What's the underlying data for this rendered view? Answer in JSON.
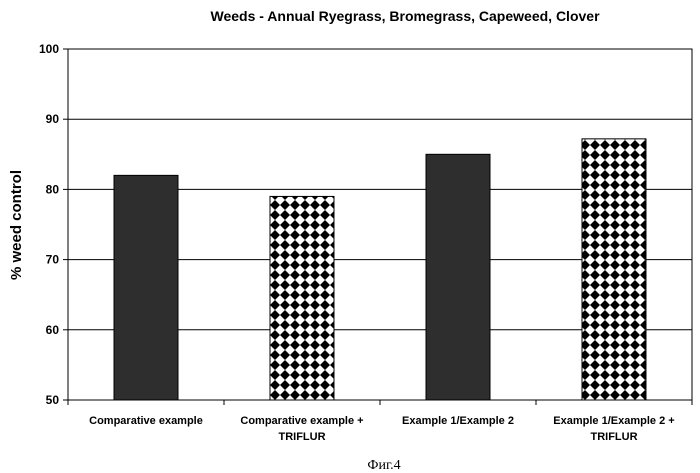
{
  "chart_data": {
    "type": "bar",
    "title": "Weeds - Annual Ryegrass, Bromegrass, Capeweed, Clover",
    "xlabel": "",
    "ylabel": "% weed control",
    "ylim": [
      50,
      100
    ],
    "yticks": [
      50,
      60,
      70,
      80,
      90,
      100
    ],
    "grid": true,
    "categories": [
      [
        "Comparative example"
      ],
      [
        "Comparative example +",
        "TRIFLUR"
      ],
      [
        "Example 1/Example 2"
      ],
      [
        "Example 1/Example 2 +",
        "TRIFLUR"
      ]
    ],
    "values": [
      82,
      79,
      85,
      87.2
    ],
    "fills": [
      "solid",
      "checker",
      "solid",
      "checker"
    ],
    "colors": {
      "solid": "#2e2e2e",
      "checker": "#000000",
      "background": "#ffffff",
      "grid": "#000000"
    }
  },
  "caption": "Фиг.4"
}
